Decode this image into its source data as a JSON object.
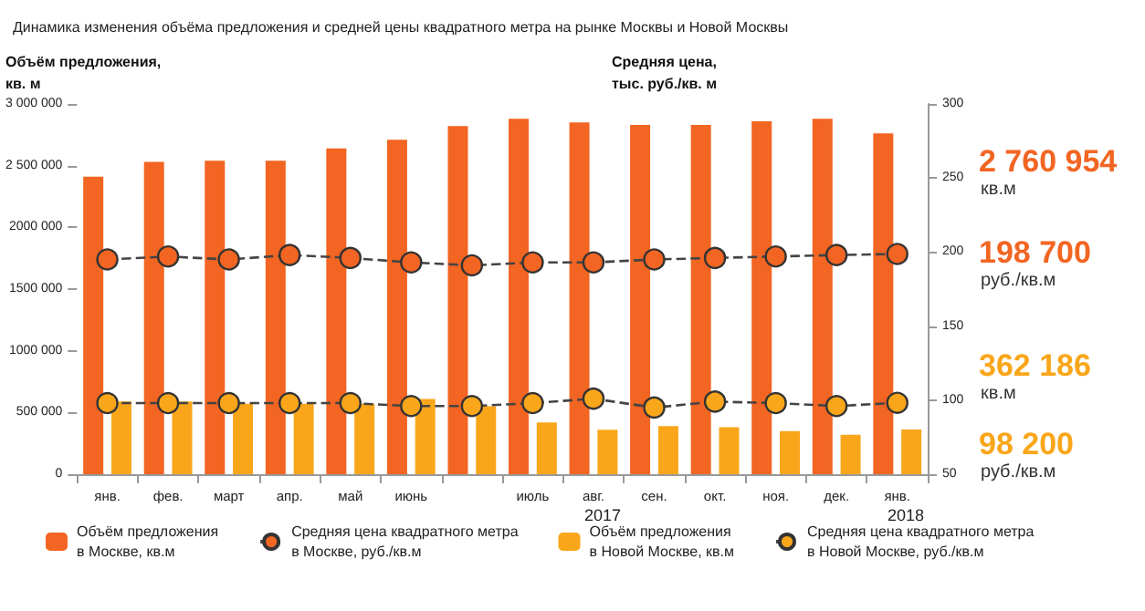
{
  "chart_data": {
    "type": "bar",
    "title": "Динамика изменения объёма предложения и средней цены квадратного метра на рынке Москвы и Новой Москвы",
    "ylabel": "Объём предложения,\nкв. м",
    "y2label": "Средняя цена,\nтыс. руб./кв. м",
    "categories": [
      "янв.",
      "фев.",
      "март",
      "апр.",
      "май",
      "июнь",
      null,
      "июль",
      "авг.",
      "сен.",
      "окт.",
      "ноя.",
      "дек.",
      "янв."
    ],
    "series": [
      {
        "name": "Объём предложения\nв Москве, кв.м",
        "color": "#f26522",
        "values": [
          2410000,
          2530000,
          2540000,
          2540000,
          2640000,
          2710000,
          2820000,
          2880000,
          2850000,
          2830000,
          2830000,
          2860000,
          2880000,
          2760954
        ]
      },
      {
        "name": "Средняя цена квадратного метра\nв Москве, руб./кв.м",
        "type": "line",
        "axis": "y2",
        "color": "#f26522",
        "values": [
          195,
          197,
          195,
          198,
          196,
          193,
          191,
          193,
          193,
          195,
          196,
          197,
          198,
          198.7
        ]
      },
      {
        "name": "Объём предложения\nв Новой Москве, кв.м",
        "color": "#f9a61a",
        "values": [
          590000,
          590000,
          570000,
          570000,
          570000,
          610000,
          550000,
          420000,
          360000,
          390000,
          380000,
          350000,
          320000,
          362186
        ]
      },
      {
        "name": "Средняя цена квадратного метра\nв Новой Москве, руб./кв.м",
        "type": "line",
        "axis": "y2",
        "color": "#f9a61a",
        "values": [
          98,
          98,
          98,
          98,
          98,
          96,
          96,
          98,
          101,
          95,
          99,
          98,
          96,
          98.2
        ]
      }
    ],
    "ylim": [
      0,
      3000000
    ],
    "yticks": [
      {
        "value": 0,
        "label": "0"
      },
      {
        "value": 500000,
        "label": "500 000"
      },
      {
        "value": 1000000,
        "label": "1000 000"
      },
      {
        "value": 1500000,
        "label": "1500 000"
      },
      {
        "value": 2000000,
        "label": "2000 000"
      },
      {
        "value": 2500000,
        "label": "2 500 000"
      },
      {
        "value": 3000000,
        "label": "3 000 000"
      }
    ],
    "y2lim": [
      50,
      300
    ],
    "y2ticks": [
      50,
      100,
      150,
      200,
      250,
      300
    ],
    "annotations": [
      "2017",
      "2018",
      "2 760 954\nкв.м",
      "198 700\nруб./кв.м",
      "362 186\nкв.м",
      "98 200\nруб./кв.м"
    ],
    "grid": false,
    "legend": "bottom",
    "marker": "circle",
    "line_style": "dashed"
  }
}
